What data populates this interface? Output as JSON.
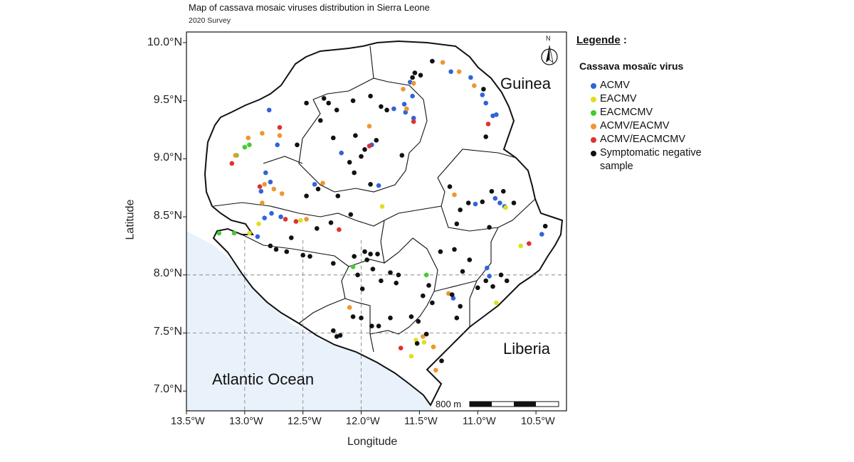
{
  "title": "Map of cassava mosaic viruses distribution in Sierra Leone",
  "subtitle": "2020 Survey",
  "axes": {
    "x_title": "Longitude",
    "y_title": "Latitude",
    "x_ticks": [
      "13.5°W",
      "13.0°W",
      "12.5°W",
      "12.0°W",
      "11.5°W",
      "11.0°W",
      "10.5°W"
    ],
    "y_ticks": [
      "10.0°N",
      "9.5°N",
      "9.0°N",
      "8.5°N",
      "8.0°N",
      "7.5°N",
      "7.0°N"
    ],
    "x_range": [
      -13.5,
      -10.3
    ],
    "y_range": [
      6.8,
      10.1
    ]
  },
  "places": {
    "guinea": "Guinea",
    "liberia": "Liberia",
    "ocean": "Atlantic Ocean"
  },
  "scale_bar": {
    "label": "800 m"
  },
  "north_arrow": {
    "label": "N"
  },
  "legend": {
    "title": "Legende",
    "title_suffix": " :",
    "subtitle": "Cassava mosaïc virus",
    "items": [
      {
        "key": "ACMV",
        "label": "ACMV",
        "color": "#3163d9"
      },
      {
        "key": "EACMV",
        "label": "EACMV",
        "color": "#dde020"
      },
      {
        "key": "EACMCMV",
        "label": "EACMCMV",
        "color": "#44cc33"
      },
      {
        "key": "ACMV/EACMV",
        "label": "ACMV/EACMV",
        "color": "#ee9633"
      },
      {
        "key": "ACMV/EACMCMV",
        "label": "ACMV/EACMCMV",
        "color": "#e03030"
      },
      {
        "key": "neg",
        "label": "Symptomatic negative sample",
        "color": "#111111"
      }
    ]
  },
  "colors": {
    "ocean": "#e9f2fb",
    "land": "#ffffff",
    "border": "#111111"
  },
  "samples": [
    {
      "lon": -12.79,
      "lat": 9.42,
      "type": "ACMV"
    },
    {
      "lon": -12.72,
      "lat": 9.12,
      "type": "ACMV"
    },
    {
      "lon": -12.82,
      "lat": 8.88,
      "type": "ACMV"
    },
    {
      "lon": -12.78,
      "lat": 8.8,
      "type": "ACMV"
    },
    {
      "lon": -12.86,
      "lat": 8.72,
      "type": "ACMV"
    },
    {
      "lon": -12.77,
      "lat": 8.53,
      "type": "ACMV"
    },
    {
      "lon": -12.83,
      "lat": 8.49,
      "type": "ACMV"
    },
    {
      "lon": -12.69,
      "lat": 8.5,
      "type": "ACMV"
    },
    {
      "lon": -12.89,
      "lat": 8.33,
      "type": "ACMV"
    },
    {
      "lon": -12.4,
      "lat": 8.78,
      "type": "ACMV"
    },
    {
      "lon": -12.17,
      "lat": 9.05,
      "type": "ACMV"
    },
    {
      "lon": -11.91,
      "lat": 9.12,
      "type": "ACMV"
    },
    {
      "lon": -11.85,
      "lat": 8.77,
      "type": "ACMV"
    },
    {
      "lon": -11.72,
      "lat": 9.43,
      "type": "ACMV"
    },
    {
      "lon": -11.63,
      "lat": 9.47,
      "type": "ACMV"
    },
    {
      "lon": -11.56,
      "lat": 9.54,
      "type": "ACMV"
    },
    {
      "lon": -11.58,
      "lat": 9.66,
      "type": "ACMV"
    },
    {
      "lon": -11.62,
      "lat": 9.4,
      "type": "ACMV"
    },
    {
      "lon": -11.55,
      "lat": 9.35,
      "type": "ACMV"
    },
    {
      "lon": -11.23,
      "lat": 9.75,
      "type": "ACMV"
    },
    {
      "lon": -11.06,
      "lat": 9.7,
      "type": "ACMV"
    },
    {
      "lon": -10.96,
      "lat": 9.55,
      "type": "ACMV"
    },
    {
      "lon": -10.93,
      "lat": 9.48,
      "type": "ACMV"
    },
    {
      "lon": -10.84,
      "lat": 9.38,
      "type": "ACMV"
    },
    {
      "lon": -10.87,
      "lat": 9.37,
      "type": "ACMV"
    },
    {
      "lon": -11.02,
      "lat": 8.61,
      "type": "ACMV"
    },
    {
      "lon": -10.85,
      "lat": 8.66,
      "type": "ACMV"
    },
    {
      "lon": -10.81,
      "lat": 8.62,
      "type": "ACMV"
    },
    {
      "lon": -10.77,
      "lat": 8.59,
      "type": "ACMV"
    },
    {
      "lon": -10.92,
      "lat": 8.06,
      "type": "ACMV"
    },
    {
      "lon": -10.9,
      "lat": 7.99,
      "type": "ACMV"
    },
    {
      "lon": -11.21,
      "lat": 7.8,
      "type": "ACMV"
    },
    {
      "lon": -10.45,
      "lat": 8.35,
      "type": "ACMV"
    },
    {
      "lon": -12.52,
      "lat": 8.47,
      "type": "EACMV"
    },
    {
      "lon": -12.96,
      "lat": 8.36,
      "type": "EACMV"
    },
    {
      "lon": -12.88,
      "lat": 8.44,
      "type": "EACMV"
    },
    {
      "lon": -11.82,
      "lat": 8.59,
      "type": "EACMV"
    },
    {
      "lon": -10.76,
      "lat": 8.58,
      "type": "EACMV"
    },
    {
      "lon": -10.63,
      "lat": 8.25,
      "type": "EACMV"
    },
    {
      "lon": -10.84,
      "lat": 7.76,
      "type": "EACMV"
    },
    {
      "lon": -11.53,
      "lat": 7.44,
      "type": "EACMV"
    },
    {
      "lon": -11.46,
      "lat": 7.42,
      "type": "EACMV"
    },
    {
      "lon": -11.38,
      "lat": 7.38,
      "type": "EACMV"
    },
    {
      "lon": -11.57,
      "lat": 7.3,
      "type": "EACMV"
    },
    {
      "lon": -13.0,
      "lat": 9.1,
      "type": "EACMCMV"
    },
    {
      "lon": -12.96,
      "lat": 9.12,
      "type": "EACMCMV"
    },
    {
      "lon": -13.22,
      "lat": 8.36,
      "type": "EACMCMV"
    },
    {
      "lon": -13.09,
      "lat": 8.36,
      "type": "EACMCMV"
    },
    {
      "lon": -12.07,
      "lat": 8.07,
      "type": "EACMCMV"
    },
    {
      "lon": -11.44,
      "lat": 8.0,
      "type": "EACMCMV"
    },
    {
      "lon": -13.07,
      "lat": 9.03,
      "type": "EACMCMV"
    },
    {
      "lon": -12.97,
      "lat": 9.18,
      "type": "ACMV/EACMV"
    },
    {
      "lon": -12.85,
      "lat": 9.22,
      "type": "ACMV/EACMV"
    },
    {
      "lon": -12.7,
      "lat": 9.2,
      "type": "ACMV/EACMV"
    },
    {
      "lon": -12.83,
      "lat": 8.78,
      "type": "ACMV/EACMV"
    },
    {
      "lon": -12.75,
      "lat": 8.74,
      "type": "ACMV/EACMV"
    },
    {
      "lon": -12.68,
      "lat": 8.7,
      "type": "ACMV/EACMV"
    },
    {
      "lon": -12.85,
      "lat": 8.62,
      "type": "ACMV/EACMV"
    },
    {
      "lon": -12.47,
      "lat": 8.48,
      "type": "ACMV/EACMV"
    },
    {
      "lon": -12.33,
      "lat": 8.79,
      "type": "ACMV/EACMV"
    },
    {
      "lon": -11.93,
      "lat": 9.28,
      "type": "ACMV/EACMV"
    },
    {
      "lon": -12.1,
      "lat": 7.72,
      "type": "ACMV/EACMV"
    },
    {
      "lon": -11.64,
      "lat": 9.6,
      "type": "ACMV/EACMV"
    },
    {
      "lon": -11.61,
      "lat": 9.43,
      "type": "ACMV/EACMV"
    },
    {
      "lon": -11.55,
      "lat": 9.65,
      "type": "ACMV/EACMV"
    },
    {
      "lon": -11.3,
      "lat": 9.83,
      "type": "ACMV/EACMV"
    },
    {
      "lon": -11.16,
      "lat": 9.75,
      "type": "ACMV/EACMV"
    },
    {
      "lon": -11.03,
      "lat": 9.63,
      "type": "ACMV/EACMV"
    },
    {
      "lon": -11.2,
      "lat": 8.69,
      "type": "ACMV/EACMV"
    },
    {
      "lon": -11.25,
      "lat": 7.84,
      "type": "ACMV/EACMV"
    },
    {
      "lon": -11.38,
      "lat": 7.38,
      "type": "ACMV/EACMV"
    },
    {
      "lon": -11.47,
      "lat": 7.47,
      "type": "ACMV/EACMV"
    },
    {
      "lon": -11.36,
      "lat": 7.18,
      "type": "ACMV/EACMV"
    },
    {
      "lon": -13.08,
      "lat": 9.03,
      "type": "ACMV/EACMV"
    },
    {
      "lon": -13.11,
      "lat": 8.96,
      "type": "ACMV/EACMCMV"
    },
    {
      "lon": -12.87,
      "lat": 8.76,
      "type": "ACMV/EACMCMV"
    },
    {
      "lon": -12.7,
      "lat": 9.27,
      "type": "ACMV/EACMCMV"
    },
    {
      "lon": -12.65,
      "lat": 8.48,
      "type": "ACMV/EACMCMV"
    },
    {
      "lon": -12.56,
      "lat": 8.46,
      "type": "ACMV/EACMCMV"
    },
    {
      "lon": -12.19,
      "lat": 8.39,
      "type": "ACMV/EACMCMV"
    },
    {
      "lon": -11.93,
      "lat": 9.11,
      "type": "ACMV/EACMCMV"
    },
    {
      "lon": -11.55,
      "lat": 9.32,
      "type": "ACMV/EACMCMV"
    },
    {
      "lon": -10.91,
      "lat": 9.3,
      "type": "ACMV/EACMCMV"
    },
    {
      "lon": -10.56,
      "lat": 8.27,
      "type": "ACMV/EACMCMV"
    },
    {
      "lon": -11.66,
      "lat": 7.37,
      "type": "ACMV/EACMCMV"
    },
    {
      "lon": -11.39,
      "lat": 9.84,
      "type": "neg"
    },
    {
      "lon": -11.49,
      "lat": 9.72,
      "type": "neg"
    },
    {
      "lon": -11.54,
      "lat": 9.74,
      "type": "neg"
    },
    {
      "lon": -10.95,
      "lat": 9.6,
      "type": "neg"
    },
    {
      "lon": -12.32,
      "lat": 9.52,
      "type": "neg"
    },
    {
      "lon": -12.28,
      "lat": 9.48,
      "type": "neg"
    },
    {
      "lon": -12.21,
      "lat": 9.42,
      "type": "neg"
    },
    {
      "lon": -12.07,
      "lat": 9.5,
      "type": "neg"
    },
    {
      "lon": -11.92,
      "lat": 9.54,
      "type": "neg"
    },
    {
      "lon": -11.83,
      "lat": 9.45,
      "type": "neg"
    },
    {
      "lon": -11.78,
      "lat": 9.42,
      "type": "neg"
    },
    {
      "lon": -12.35,
      "lat": 9.33,
      "type": "neg"
    },
    {
      "lon": -12.24,
      "lat": 9.18,
      "type": "neg"
    },
    {
      "lon": -12.05,
      "lat": 9.2,
      "type": "neg"
    },
    {
      "lon": -11.97,
      "lat": 9.08,
      "type": "neg"
    },
    {
      "lon": -12.1,
      "lat": 8.97,
      "type": "neg"
    },
    {
      "lon": -12.06,
      "lat": 8.88,
      "type": "neg"
    },
    {
      "lon": -11.92,
      "lat": 8.78,
      "type": "neg"
    },
    {
      "lon": -12.37,
      "lat": 8.74,
      "type": "neg"
    },
    {
      "lon": -12.47,
      "lat": 8.68,
      "type": "neg"
    },
    {
      "lon": -12.2,
      "lat": 8.68,
      "type": "neg"
    },
    {
      "lon": -12.09,
      "lat": 8.52,
      "type": "neg"
    },
    {
      "lon": -12.26,
      "lat": 8.45,
      "type": "neg"
    },
    {
      "lon": -12.38,
      "lat": 8.4,
      "type": "neg"
    },
    {
      "lon": -12.6,
      "lat": 8.32,
      "type": "neg"
    },
    {
      "lon": -12.78,
      "lat": 8.25,
      "type": "neg"
    },
    {
      "lon": -12.64,
      "lat": 8.2,
      "type": "neg"
    },
    {
      "lon": -12.73,
      "lat": 8.22,
      "type": "neg"
    },
    {
      "lon": -12.5,
      "lat": 8.17,
      "type": "neg"
    },
    {
      "lon": -12.44,
      "lat": 8.16,
      "type": "neg"
    },
    {
      "lon": -12.24,
      "lat": 8.1,
      "type": "neg"
    },
    {
      "lon": -12.06,
      "lat": 8.16,
      "type": "neg"
    },
    {
      "lon": -11.97,
      "lat": 8.2,
      "type": "neg"
    },
    {
      "lon": -11.95,
      "lat": 8.13,
      "type": "neg"
    },
    {
      "lon": -11.92,
      "lat": 8.18,
      "type": "neg"
    },
    {
      "lon": -11.9,
      "lat": 8.05,
      "type": "neg"
    },
    {
      "lon": -12.03,
      "lat": 8.0,
      "type": "neg"
    },
    {
      "lon": -11.99,
      "lat": 7.88,
      "type": "neg"
    },
    {
      "lon": -11.83,
      "lat": 7.95,
      "type": "neg"
    },
    {
      "lon": -11.75,
      "lat": 8.02,
      "type": "neg"
    },
    {
      "lon": -11.68,
      "lat": 8.0,
      "type": "neg"
    },
    {
      "lon": -11.7,
      "lat": 7.93,
      "type": "neg"
    },
    {
      "lon": -11.86,
      "lat": 8.18,
      "type": "neg"
    },
    {
      "lon": -12.24,
      "lat": 7.52,
      "type": "neg"
    },
    {
      "lon": -12.18,
      "lat": 7.48,
      "type": "neg"
    },
    {
      "lon": -12.21,
      "lat": 7.47,
      "type": "neg"
    },
    {
      "lon": -12.07,
      "lat": 7.64,
      "type": "neg"
    },
    {
      "lon": -12.0,
      "lat": 7.63,
      "type": "neg"
    },
    {
      "lon": -11.91,
      "lat": 7.56,
      "type": "neg"
    },
    {
      "lon": -11.75,
      "lat": 7.63,
      "type": "neg"
    },
    {
      "lon": -11.57,
      "lat": 7.64,
      "type": "neg"
    },
    {
      "lon": -11.51,
      "lat": 7.6,
      "type": "neg"
    },
    {
      "lon": -11.44,
      "lat": 7.49,
      "type": "neg"
    },
    {
      "lon": -11.42,
      "lat": 7.91,
      "type": "neg"
    },
    {
      "lon": -11.47,
      "lat": 7.82,
      "type": "neg"
    },
    {
      "lon": -11.39,
      "lat": 7.76,
      "type": "neg"
    },
    {
      "lon": -11.32,
      "lat": 8.2,
      "type": "neg"
    },
    {
      "lon": -11.2,
      "lat": 8.22,
      "type": "neg"
    },
    {
      "lon": -11.07,
      "lat": 8.13,
      "type": "neg"
    },
    {
      "lon": -11.13,
      "lat": 8.03,
      "type": "neg"
    },
    {
      "lon": -11.22,
      "lat": 7.83,
      "type": "neg"
    },
    {
      "lon": -11.15,
      "lat": 7.73,
      "type": "neg"
    },
    {
      "lon": -11.0,
      "lat": 7.89,
      "type": "neg"
    },
    {
      "lon": -10.93,
      "lat": 7.95,
      "type": "neg"
    },
    {
      "lon": -10.87,
      "lat": 7.9,
      "type": "neg"
    },
    {
      "lon": -10.8,
      "lat": 8.0,
      "type": "neg"
    },
    {
      "lon": -10.75,
      "lat": 7.95,
      "type": "neg"
    },
    {
      "lon": -11.15,
      "lat": 8.56,
      "type": "neg"
    },
    {
      "lon": -11.08,
      "lat": 8.62,
      "type": "neg"
    },
    {
      "lon": -10.96,
      "lat": 8.63,
      "type": "neg"
    },
    {
      "lon": -10.88,
      "lat": 8.72,
      "type": "neg"
    },
    {
      "lon": -10.78,
      "lat": 8.72,
      "type": "neg"
    },
    {
      "lon": -10.69,
      "lat": 8.62,
      "type": "neg"
    },
    {
      "lon": -11.24,
      "lat": 8.76,
      "type": "neg"
    },
    {
      "lon": -11.18,
      "lat": 8.44,
      "type": "neg"
    },
    {
      "lon": -10.9,
      "lat": 8.41,
      "type": "neg"
    },
    {
      "lon": -11.18,
      "lat": 7.63,
      "type": "neg"
    },
    {
      "lon": -10.42,
      "lat": 8.42,
      "type": "neg"
    },
    {
      "lon": -11.31,
      "lat": 7.26,
      "type": "neg"
    },
    {
      "lon": -11.52,
      "lat": 7.41,
      "type": "neg"
    },
    {
      "lon": -11.85,
      "lat": 7.56,
      "type": "neg"
    },
    {
      "lon": -11.56,
      "lat": 9.7,
      "type": "neg"
    },
    {
      "lon": -10.93,
      "lat": 9.19,
      "type": "neg"
    },
    {
      "lon": -12.55,
      "lat": 9.12,
      "type": "neg"
    },
    {
      "lon": -12.47,
      "lat": 9.48,
      "type": "neg"
    },
    {
      "lon": -12.0,
      "lat": 9.02,
      "type": "neg"
    },
    {
      "lon": -11.65,
      "lat": 9.03,
      "type": "neg"
    },
    {
      "lon": -11.87,
      "lat": 9.16,
      "type": "neg"
    }
  ]
}
